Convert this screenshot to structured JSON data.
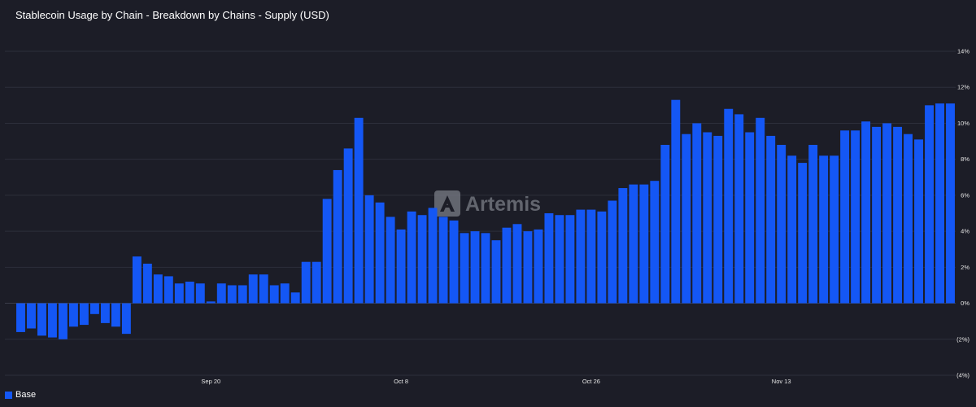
{
  "chart_data": {
    "type": "bar",
    "title": "Stablecoin Usage by Chain - Breakdown by Chains - Supply (USD)",
    "xlabel": "",
    "ylabel": "",
    "ylim": [
      -4,
      14
    ],
    "y_ticks": [
      14,
      12,
      10,
      8,
      6,
      4,
      2,
      0,
      -2,
      -4
    ],
    "y_tick_labels": [
      "14%",
      "12%",
      "10%",
      "8%",
      "6%",
      "4%",
      "2%",
      "0%",
      "(2%)",
      "(4%)"
    ],
    "x_tick_labels": [
      {
        "label": "Sep 20",
        "index": 18
      },
      {
        "label": "Oct 8",
        "index": 36
      },
      {
        "label": "Oct 26",
        "index": 54
      },
      {
        "label": "Nov 13",
        "index": 72
      }
    ],
    "grid": true,
    "legend_position": "bottom-left",
    "series": [
      {
        "name": "Base",
        "color": "#1457f5",
        "values": [
          -1.6,
          -1.4,
          -1.8,
          -1.9,
          -2.0,
          -1.3,
          -1.2,
          -0.6,
          -1.1,
          -1.3,
          -1.7,
          2.6,
          2.2,
          1.6,
          1.5,
          1.1,
          1.2,
          1.1,
          0.1,
          1.1,
          1.0,
          1.0,
          1.6,
          1.6,
          1.0,
          1.1,
          0.6,
          2.3,
          2.3,
          5.8,
          7.4,
          8.6,
          10.3,
          6.0,
          5.6,
          4.8,
          4.1,
          5.1,
          4.9,
          5.3,
          4.8,
          4.6,
          3.9,
          4.0,
          3.9,
          3.5,
          4.2,
          4.4,
          4.0,
          4.1,
          5.0,
          4.9,
          4.9,
          5.2,
          5.2,
          5.1,
          5.7,
          6.4,
          6.6,
          6.6,
          6.8,
          8.8,
          11.3,
          9.4,
          10.0,
          9.5,
          9.3,
          10.8,
          10.5,
          9.5,
          10.3,
          9.3,
          8.8,
          8.2,
          7.8,
          8.8,
          8.2,
          8.2,
          9.6,
          9.6,
          10.1,
          9.8,
          10.0,
          9.8,
          9.4,
          9.1,
          11.0,
          11.1,
          11.1
        ]
      }
    ]
  },
  "watermark": {
    "text": "Artemis",
    "icon": "artemis-logo-icon"
  },
  "legend": {
    "label": "Base",
    "color": "#1457f5"
  },
  "colors": {
    "background": "#1c1d27",
    "grid": "#2d2f3b",
    "bar": "#1457f5"
  }
}
